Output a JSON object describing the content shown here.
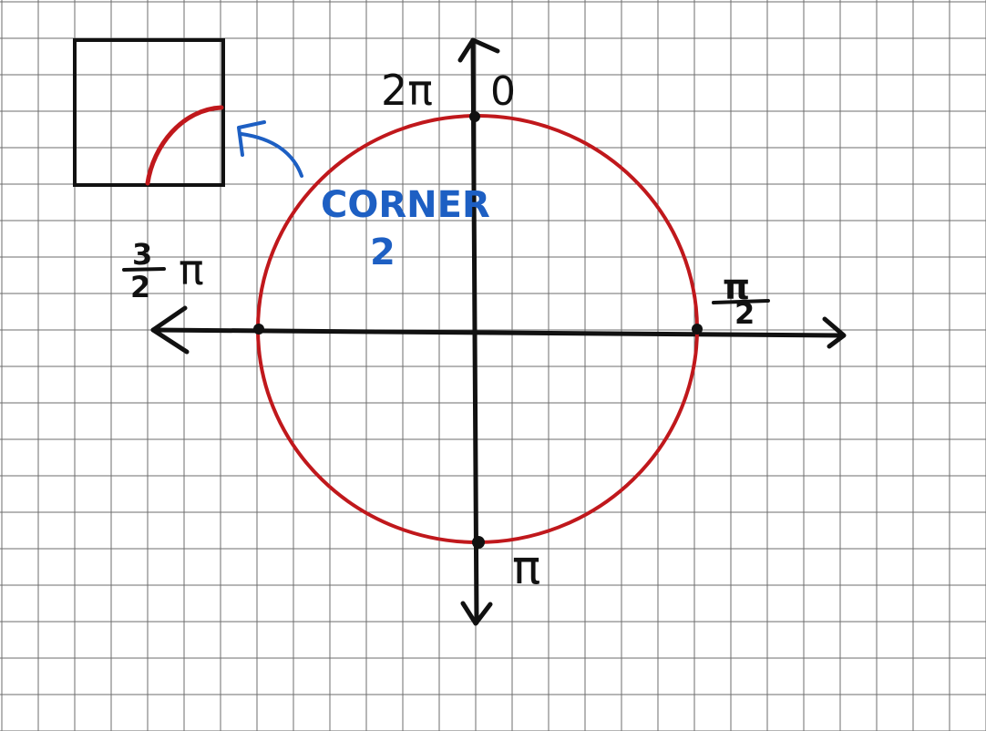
{
  "colors": {
    "grid": "#6e6e6e",
    "ink": "#111111",
    "circle": "#c0181c",
    "note": "#1d5fc3",
    "background": "#ffffff"
  },
  "labels": {
    "top_left": "2π",
    "top_right": "0",
    "right_numerator": "π",
    "right_denominator": "2",
    "left_numerator": "3",
    "left_denominator": "2",
    "left_pi": "π",
    "bottom": "π"
  },
  "note": {
    "line1": "CORNER",
    "line2": "2"
  },
  "icons": {
    "arrow": "curved-arrow-icon"
  }
}
